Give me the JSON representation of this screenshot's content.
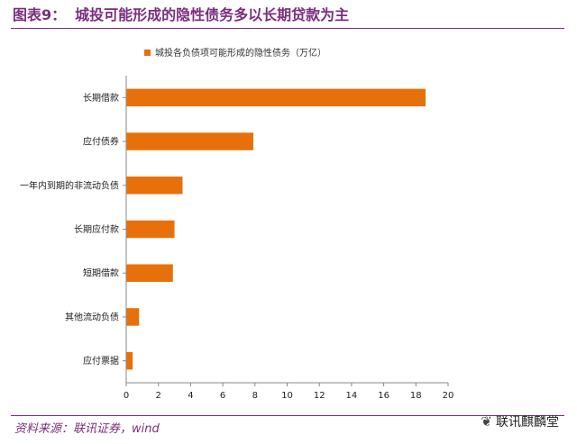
{
  "header": {
    "fig_label": "图表9：",
    "title": "城投可能形成的隐性债务多以长期贷款为主"
  },
  "source_text": "资料来源：联讯证券，wind",
  "watermark": {
    "icon": "wechat-icon",
    "text": "联讯麒麟堂"
  },
  "colors": {
    "bar": "#e8700a",
    "title": "#7b2d7f",
    "axis": "#888888"
  },
  "chart_data": {
    "type": "bar",
    "orientation": "horizontal",
    "series": [
      {
        "name": "城投各负债项可能形成的隐性债务（万亿）",
        "values": [
          18.6,
          7.9,
          3.5,
          3.0,
          2.9,
          0.8,
          0.4
        ]
      }
    ],
    "categories": [
      "长期借款",
      "应付债券",
      "一年内到期的非流动负债",
      "长期应付款",
      "短期借款",
      "其他流动负债",
      "应付票据"
    ],
    "xlim": [
      0,
      20
    ],
    "xticks": [
      "0",
      "2",
      "4",
      "6",
      "8",
      "10",
      "12",
      "14",
      "16",
      "18",
      "20"
    ],
    "legend_position": "top-left",
    "grid": false
  }
}
